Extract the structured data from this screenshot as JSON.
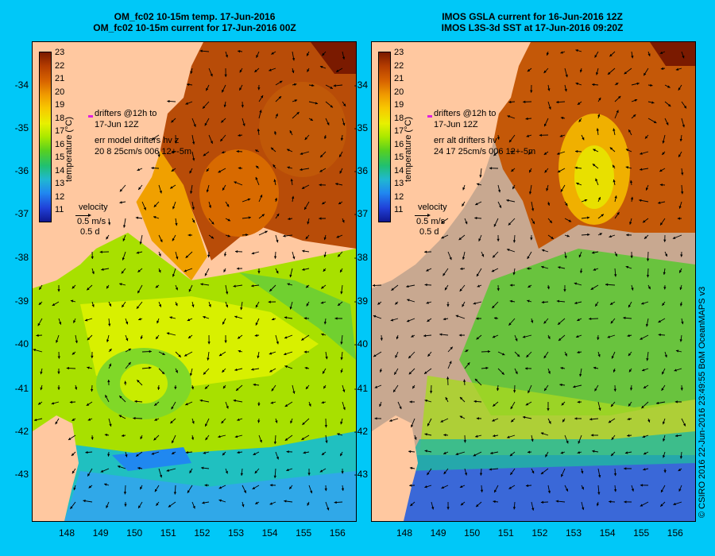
{
  "left_panel": {
    "title_line1": "OM_fc02 10-15m temp. 17-Jun-2016",
    "title_line2": "OM_fc02 10-15m current for 17-Jun-2016 00Z",
    "drifters_line1": "drifters @12h to",
    "drifters_line2": "17-Jun 12Z",
    "err_line1": "err model drifters hv z",
    "err_line2": "20 8 25cm/s 006 12+-5m"
  },
  "right_panel": {
    "title_line1": "IMOS GSLA current for 16-Jun-2016 12Z",
    "title_line2": "IMOS L3S-3d SST at 17-Jun-2016 09:20Z",
    "drifters_line1": "drifters @12h to",
    "drifters_line2": "17-Jun 12Z",
    "err_line1": "err alt drifters hv",
    "err_line2": "24 17 25cm/s 006 12+-5m"
  },
  "colorbar": {
    "title": "temperature (°C)",
    "labels": [
      "23",
      "22",
      "21",
      "20",
      "19",
      "18",
      "17",
      "16",
      "15",
      "14",
      "13",
      "12",
      "11"
    ],
    "colors": [
      "#7a1a00",
      "#b43c00",
      "#d86400",
      "#f09a00",
      "#f8c800",
      "#e8f000",
      "#a8e800",
      "#58d020",
      "#20c070",
      "#20b8d0",
      "#2088f0",
      "#2040d8",
      "#101890"
    ]
  },
  "velocity_legend": {
    "title": "velocity",
    "speed": "0.5 m/s",
    "time": "0.5 d"
  },
  "axes": {
    "lat_labels": [
      "-34",
      "-35",
      "-36",
      "-37",
      "-38",
      "-39",
      "-40",
      "-41",
      "-42",
      "-43"
    ],
    "lon_labels": [
      "148",
      "149",
      "150",
      "151",
      "152",
      "153",
      "154",
      "155",
      "156"
    ]
  },
  "credit": "© CSIRO 2016   22-Jun-2016 23:49:55 BoM OceanMAPS v3",
  "colors": {
    "background": "#00c8f8",
    "land": "#ffc8a0",
    "nodata": "#c8a890",
    "drifter": "#e020e0"
  }
}
